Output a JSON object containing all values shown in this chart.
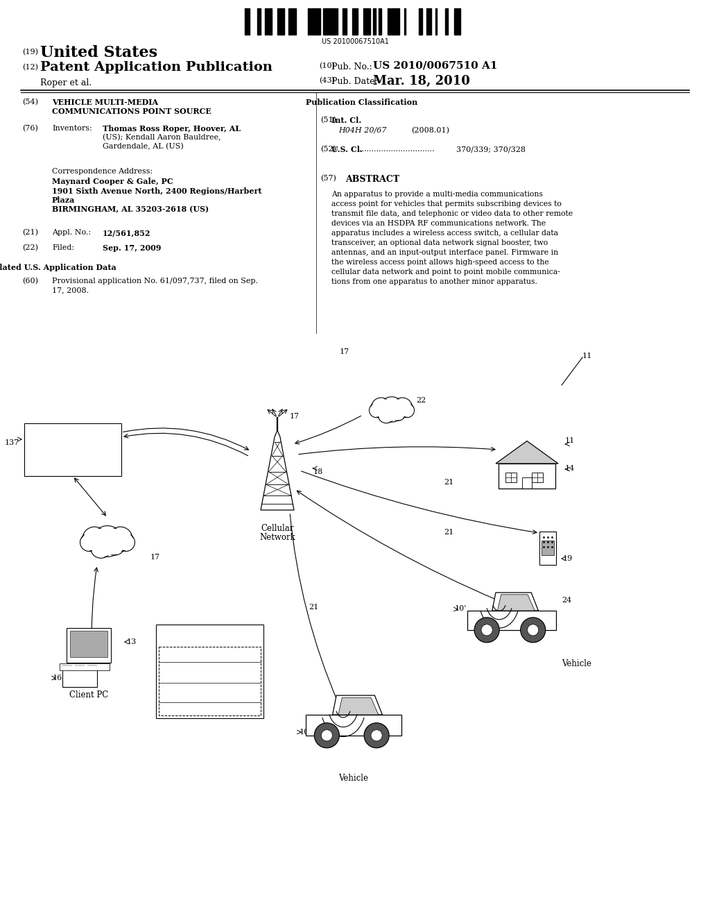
{
  "bg_color": "#ffffff",
  "barcode_text": "US 20100067510A1",
  "fig_w": 10.24,
  "fig_h": 13.2,
  "dpi": 100,
  "header": {
    "num19": "(19)",
    "title19": "United States",
    "num12": "(12)",
    "title12": "Patent Application Publication",
    "author": "Roper et al.",
    "num10": "(10)",
    "pubno_label": "Pub. No.:",
    "pubno_value": "US 2010/0067510 A1",
    "num43": "(43)",
    "pubdate_label": "Pub. Date:",
    "pubdate_value": "Mar. 18, 2010"
  },
  "left_col": {
    "num54": "(54)",
    "title54a": "VEHICLE MULTI-MEDIA",
    "title54b": "COMMUNICATIONS POINT SOURCE",
    "num76": "(76)",
    "inventors_label": "Inventors:",
    "inv_line1": "Thomas Ross Roper, Hoover, AL",
    "inv_line2": "(US); Kendall Aaron Bauldree,",
    "inv_line3": "Gardendale, AL (US)",
    "num21": "(21)",
    "appl_label": "Appl. No.:",
    "appl_value": "12/561,852",
    "num22": "(22)",
    "filed_label": "Filed:",
    "filed_value": "Sep. 17, 2009",
    "related_title": "Related U.S. Application Data",
    "num60": "(60)",
    "related_line1": "Provisional application No. 61/097,737, filed on Sep.",
    "related_line2": "17, 2008."
  },
  "right_col": {
    "pub_class_title": "Publication Classification",
    "num51": "(51)",
    "intcl_label": "Int. Cl.",
    "intcl_code": "H04H 20/67",
    "intcl_year": "(2008.01)",
    "num52": "(52)",
    "uscl_label": "U.S. Cl.",
    "uscl_value": "370/339; 370/328",
    "num57": "(57)",
    "abstract_title": "ABSTRACT",
    "abstract_lines": [
      "An apparatus to provide a multi-media communications",
      "access point for vehicles that permits subscribing devices to",
      "transmit file data, and telephonic or video data to other remote",
      "devices via an HSDPA RF communications network. The",
      "apparatus includes a wireless access switch, a cellular data",
      "transceiver, an optional data network signal booster, two",
      "antennas, and an input-output interface panel. Firmware in",
      "the wireless access point allows high-speed access to the",
      "cellular data network and point to point mobile communica-",
      "tions from one apparatus to another minor apparatus."
    ]
  }
}
